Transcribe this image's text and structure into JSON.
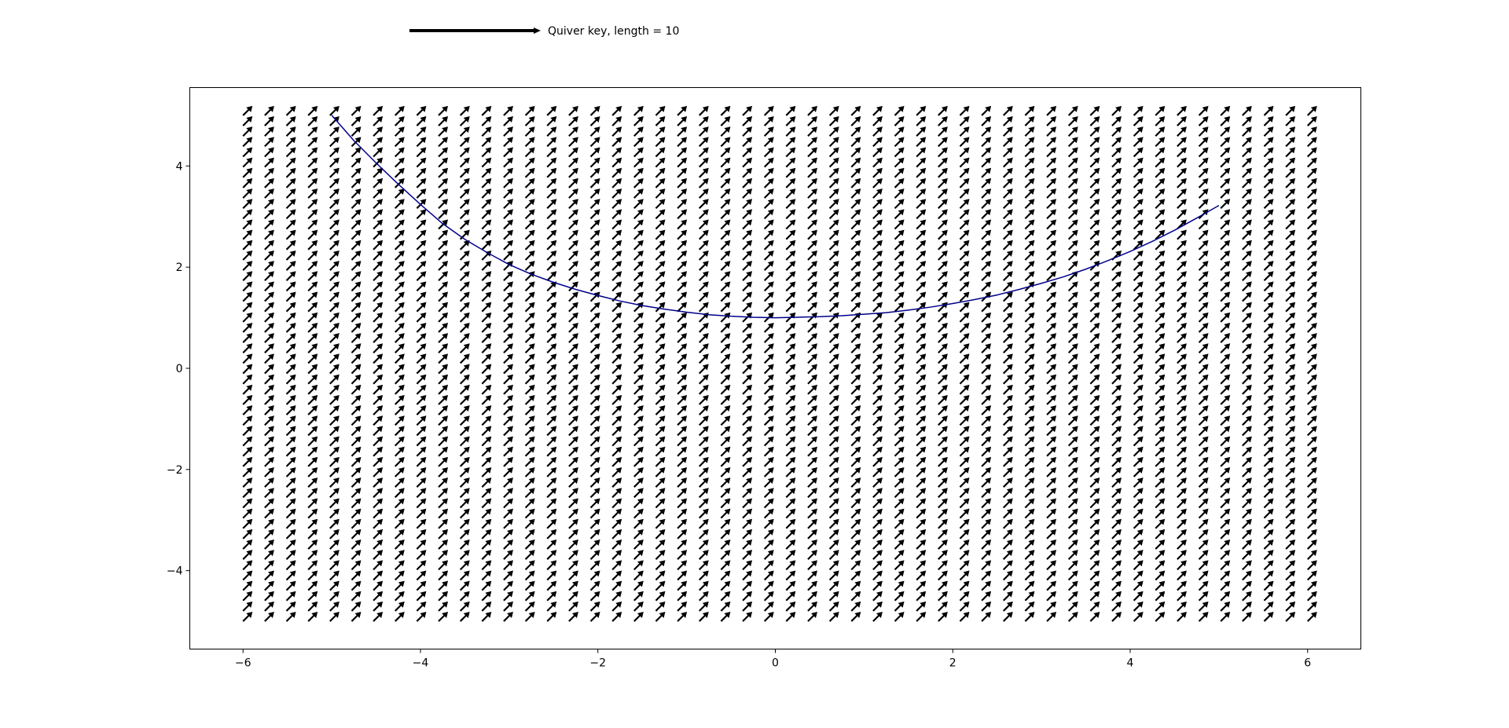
{
  "chart_data": {
    "type": "quiver",
    "title": "",
    "xlabel": "",
    "ylabel": "",
    "xlim": [
      -6.6,
      6.6
    ],
    "ylim": [
      -5.55,
      5.55
    ],
    "xticks": [
      -6,
      -4,
      -2,
      0,
      2,
      4,
      6
    ],
    "yticks": [
      -4,
      -2,
      0,
      2,
      4
    ],
    "xtick_labels": [
      "−6",
      "−4",
      "−2",
      "0",
      "2",
      "4",
      "6"
    ],
    "ytick_labels": [
      "−4",
      "−2",
      "0",
      "2",
      "4"
    ],
    "grid": false,
    "quiver_grid": {
      "x_start": -6,
      "x_end": 6,
      "x_count": 50,
      "y_start": -5,
      "y_end": 5,
      "y_count": 50,
      "vector": [
        1,
        1
      ],
      "color": "#000000"
    },
    "quiver_key": {
      "label": "Quiver key, length = 10",
      "length": 10,
      "position": "top-left, above axes"
    },
    "series": [
      {
        "type": "line",
        "color": "#00008b",
        "x": [
          -5,
          -4.75,
          -4.5,
          -4.25,
          -4,
          -3.75,
          -3.5,
          -3.25,
          -3,
          -2.75,
          -2.5,
          -2.25,
          -2,
          -1.75,
          -1.5,
          -1.25,
          -1,
          -0.75,
          -0.5,
          -0.25,
          0,
          0.25,
          0.5,
          0.75,
          1,
          1.25,
          1.5,
          1.75,
          2,
          2.25,
          2.5,
          2.75,
          3,
          3.25,
          3.5,
          3.75,
          4,
          4.25,
          4.5,
          4.75,
          5
        ],
        "y": [
          5.0,
          4.5,
          4.06,
          3.64,
          3.24,
          2.86,
          2.55,
          2.29,
          2.05,
          1.86,
          1.7,
          1.56,
          1.44,
          1.33,
          1.24,
          1.17,
          1.11,
          1.06,
          1.03,
          1.01,
          1.0,
          1.01,
          1.02,
          1.04,
          1.07,
          1.1,
          1.15,
          1.21,
          1.28,
          1.36,
          1.45,
          1.56,
          1.68,
          1.81,
          1.96,
          2.13,
          2.31,
          2.51,
          2.73,
          2.97,
          3.22
        ]
      }
    ]
  }
}
